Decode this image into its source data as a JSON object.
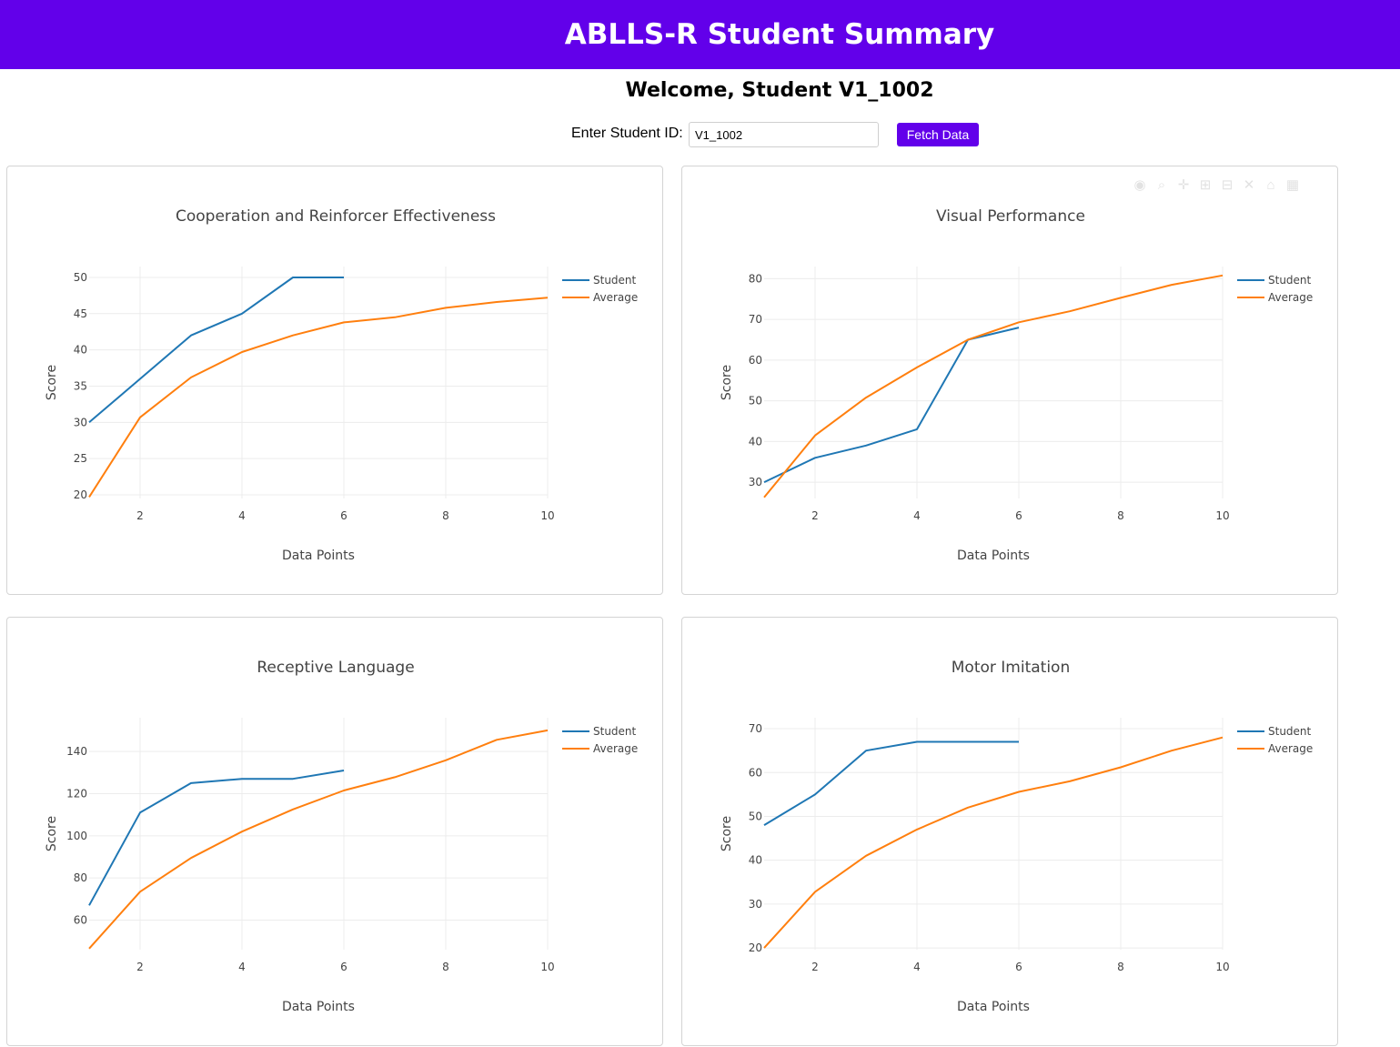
{
  "header": {
    "title": "ABLLS-R Student Summary"
  },
  "welcome": {
    "text": "Welcome, Student V1_1002"
  },
  "id_form": {
    "label": "Enter Student ID:",
    "value": "V1_1002",
    "button_label": "Fetch Data"
  },
  "colors": {
    "header_bg": "#6200ea",
    "student": "#1f77b4",
    "average": "#ff7f0e"
  },
  "modebar_icons": [
    "camera-icon",
    "zoom-icon",
    "pan-icon",
    "zoom-in-icon",
    "zoom-out-icon",
    "autoscale-icon",
    "reset-axes-icon",
    "plotly-logo-icon"
  ],
  "chart_data": [
    {
      "type": "line",
      "title": "Cooperation and Reinforcer Effectiveness",
      "xlabel": "Data Points",
      "ylabel": "Score",
      "xlim": [
        1,
        10
      ],
      "ylim": [
        19.5,
        51.5
      ],
      "xticks": [
        2,
        4,
        6,
        8,
        10
      ],
      "yticks": [
        20,
        25,
        30,
        35,
        40,
        45,
        50
      ],
      "grid": true,
      "legend": "top-right",
      "series": [
        {
          "name": "Student",
          "x": [
            1,
            2,
            3,
            4,
            5,
            6
          ],
          "y": [
            30,
            36,
            42,
            45,
            50,
            50
          ]
        },
        {
          "name": "Average",
          "x": [
            1,
            2,
            3,
            4,
            5,
            6,
            7,
            8,
            9,
            10
          ],
          "y": [
            19.7,
            30.7,
            36.2,
            39.7,
            42,
            43.8,
            44.5,
            45.8,
            46.6,
            47.2
          ]
        }
      ]
    },
    {
      "type": "line",
      "title": "Visual Performance",
      "xlabel": "Data Points",
      "ylabel": "Score",
      "xlim": [
        1,
        10
      ],
      "ylim": [
        26,
        83
      ],
      "xticks": [
        2,
        4,
        6,
        8,
        10
      ],
      "yticks": [
        30,
        40,
        50,
        60,
        70,
        80
      ],
      "grid": true,
      "legend": "top-right",
      "series": [
        {
          "name": "Student",
          "x": [
            1,
            2,
            3,
            4,
            5,
            6
          ],
          "y": [
            30,
            36,
            39,
            43,
            65,
            68
          ]
        },
        {
          "name": "Average",
          "x": [
            1,
            2,
            3,
            4,
            5,
            6,
            7,
            8,
            9,
            10
          ],
          "y": [
            26.3,
            41.5,
            50.8,
            58.2,
            65,
            69.3,
            72,
            75.3,
            78.5,
            80.8
          ]
        }
      ]
    },
    {
      "type": "line",
      "title": "Receptive Language",
      "xlabel": "Data Points",
      "ylabel": "Score",
      "xlim": [
        1,
        10
      ],
      "ylim": [
        46,
        156
      ],
      "xticks": [
        2,
        4,
        6,
        8,
        10
      ],
      "yticks": [
        60,
        80,
        100,
        120,
        140
      ],
      "grid": true,
      "legend": "top-right",
      "series": [
        {
          "name": "Student",
          "x": [
            1,
            2,
            3,
            4,
            5,
            6
          ],
          "y": [
            67,
            111,
            125,
            127,
            127,
            131
          ]
        },
        {
          "name": "Average",
          "x": [
            1,
            2,
            3,
            4,
            5,
            6,
            7,
            8,
            9,
            10
          ],
          "y": [
            46.5,
            73.5,
            89.5,
            102,
            112.5,
            121.5,
            127.8,
            135.8,
            145.5,
            150
          ]
        }
      ]
    },
    {
      "type": "line",
      "title": "Motor Imitation",
      "xlabel": "Data Points",
      "ylabel": "Score",
      "xlim": [
        1,
        10
      ],
      "ylim": [
        19.6,
        72.5
      ],
      "xticks": [
        2,
        4,
        6,
        8,
        10
      ],
      "yticks": [
        20,
        30,
        40,
        50,
        60,
        70
      ],
      "grid": true,
      "legend": "top-right",
      "series": [
        {
          "name": "Student",
          "x": [
            1,
            2,
            3,
            4,
            5,
            6
          ],
          "y": [
            48,
            55,
            65,
            67,
            67,
            67
          ]
        },
        {
          "name": "Average",
          "x": [
            1,
            2,
            3,
            4,
            5,
            6,
            7,
            8,
            9,
            10
          ],
          "y": [
            20,
            32.8,
            41,
            47,
            52,
            55.6,
            58,
            61.2,
            65,
            68
          ]
        }
      ]
    }
  ]
}
